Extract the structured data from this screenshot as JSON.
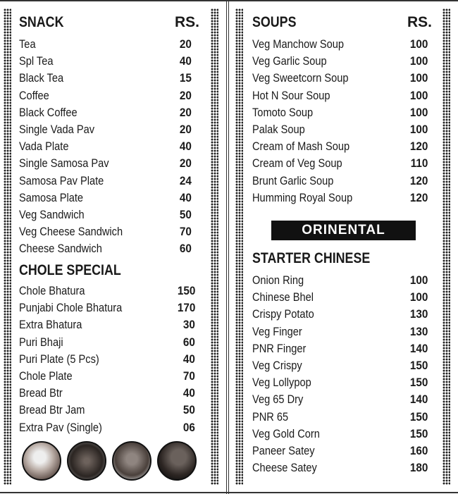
{
  "left": {
    "snack": {
      "title": "SNACK",
      "rs": "RS.",
      "items": [
        {
          "name": "Tea",
          "price": "20"
        },
        {
          "name": "Spl Tea",
          "price": "40"
        },
        {
          "name": "Black Tea",
          "price": "15"
        },
        {
          "name": "Coffee",
          "price": "20"
        },
        {
          "name": "Black Coffee",
          "price": "20"
        },
        {
          "name": "Single Vada Pav",
          "price": "20"
        },
        {
          "name": "Vada Plate",
          "price": "40"
        },
        {
          "name": "Single Samosa Pav",
          "price": "20"
        },
        {
          "name": "Samosa Pav Plate",
          "price": "24"
        },
        {
          "name": "Samosa Plate",
          "price": "40"
        },
        {
          "name": "Veg Sandwich",
          "price": "50"
        },
        {
          "name": "Veg Cheese Sandwich",
          "price": "70"
        },
        {
          "name": "Cheese Sandwich",
          "price": "60"
        }
      ]
    },
    "chole": {
      "title": "CHOLE SPECIAL",
      "items": [
        {
          "name": "Chole Bhatura",
          "price": "150"
        },
        {
          "name": "Punjabi Chole Bhatura",
          "price": "170"
        },
        {
          "name": "Extra Bhatura",
          "price": "30"
        },
        {
          "name": "Puri Bhaji",
          "price": "60"
        },
        {
          "name": "Puri Plate (5 Pcs)",
          "price": "40"
        },
        {
          "name": "Chole Plate",
          "price": "70"
        },
        {
          "name": "Bread Btr",
          "price": "40"
        },
        {
          "name": "Bread Btr Jam",
          "price": "50"
        },
        {
          "name": "Extra Pav (Single)",
          "price": "06"
        }
      ]
    },
    "photos": [
      "tea-photo",
      "food-photo",
      "bowl-photo",
      "noodles-photo"
    ]
  },
  "right": {
    "soups": {
      "title": "SOUPS",
      "rs": "RS.",
      "items": [
        {
          "name": "Veg Manchow Soup",
          "price": "100"
        },
        {
          "name": "Veg Garlic Soup",
          "price": "100"
        },
        {
          "name": "Veg Sweetcorn Soup",
          "price": "100"
        },
        {
          "name": "Hot N Sour Soup",
          "price": "100"
        },
        {
          "name": "Tomoto Soup",
          "price": "100"
        },
        {
          "name": "Palak Soup",
          "price": "100"
        },
        {
          "name": "Cream of Mash Soup",
          "price": "120"
        },
        {
          "name": "Cream of Veg Soup",
          "price": "110"
        },
        {
          "name": "Brunt Garlic Soup",
          "price": "120"
        },
        {
          "name": "Humming Royal Soup",
          "price": "120"
        }
      ]
    },
    "banner": "ORINENTAL",
    "starter": {
      "title": "STARTER CHINESE",
      "items": [
        {
          "name": "Onion Ring",
          "price": "100"
        },
        {
          "name": "Chinese Bhel",
          "price": "100"
        },
        {
          "name": "Crispy Potato",
          "price": "130"
        },
        {
          "name": "Veg Finger",
          "price": "130"
        },
        {
          "name": "PNR Finger",
          "price": "140"
        },
        {
          "name": "Veg Crispy",
          "price": "150"
        },
        {
          "name": "Veg Lollypop",
          "price": "150"
        },
        {
          "name": "Veg 65 Dry",
          "price": "140"
        },
        {
          "name": "PNR 65",
          "price": "150"
        },
        {
          "name": "Veg Gold Corn",
          "price": "150"
        },
        {
          "name": "Paneer Satey",
          "price": "160"
        },
        {
          "name": "Cheese Satey",
          "price": "180"
        }
      ]
    }
  }
}
